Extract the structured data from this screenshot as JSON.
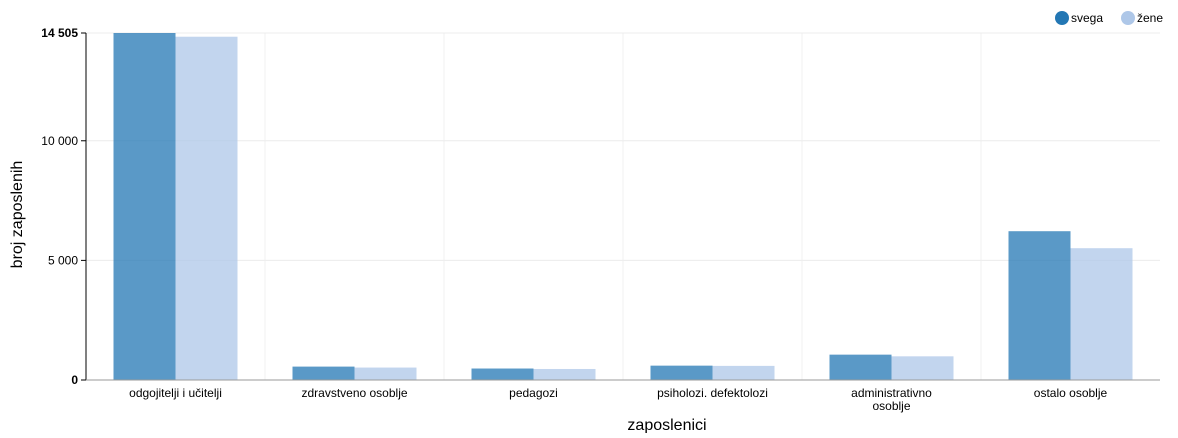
{
  "chart_data": {
    "type": "bar",
    "xlabel": "zaposlenici",
    "ylabel": "broj zaposlenih",
    "ylim": [
      0,
      14505
    ],
    "y_ticks": [
      {
        "value": 0,
        "label": "0",
        "bold": true
      },
      {
        "value": 5000,
        "label": "5 000",
        "bold": false
      },
      {
        "value": 10000,
        "label": "10 000",
        "bold": false
      },
      {
        "value": 14505,
        "label": "14 505",
        "bold": true
      }
    ],
    "categories": [
      [
        "odgojitelji i učitelji"
      ],
      [
        "zdravstveno osoblje"
      ],
      [
        "pedagozi"
      ],
      [
        "psiholozi. defektolozi"
      ],
      [
        "administrativno",
        "osoblje"
      ],
      [
        "ostalo osoblje"
      ]
    ],
    "series": [
      {
        "name": "svega",
        "color": "#2377b4",
        "values": [
          14505,
          560,
          480,
          600,
          1060,
          6220
        ]
      },
      {
        "name": "žene",
        "color": "#aec7e8",
        "values": [
          14350,
          520,
          460,
          590,
          990,
          5510
        ]
      }
    ],
    "grid": true,
    "legend": "top-right"
  }
}
